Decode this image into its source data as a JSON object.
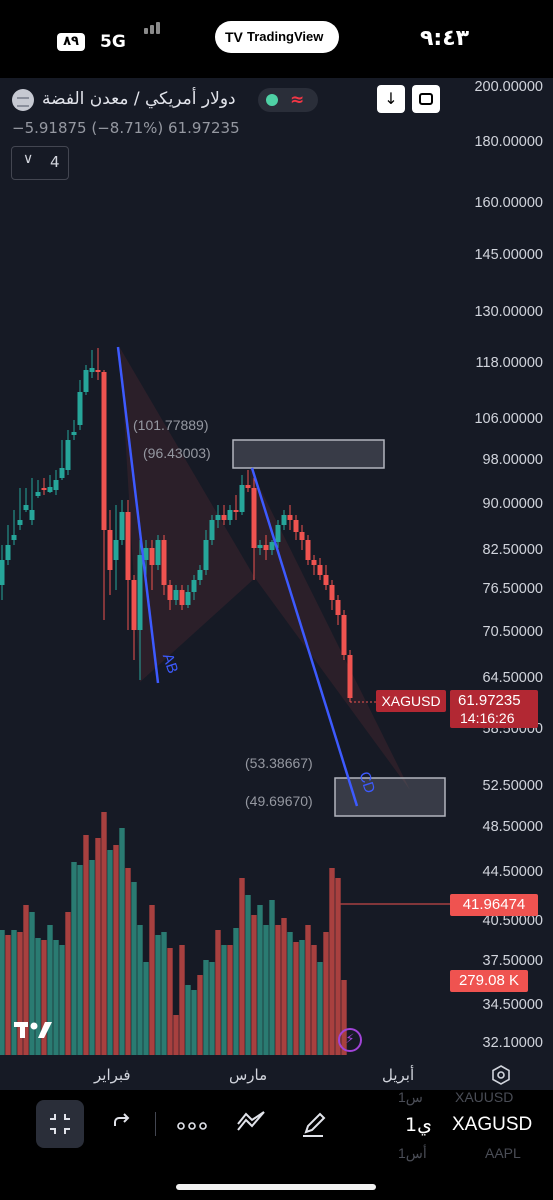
{
  "status_bar": {
    "badge": "٨٩",
    "network": "5G",
    "pill_logo": "TV",
    "pill_text": "TradingView",
    "time": "٩:٤٣"
  },
  "symbol": {
    "name": "دولار أمريكي / معدن الفضة",
    "change_line": "−5.91875 (−8.71%)  61.97235",
    "indicator_count": "4",
    "market_wave": "≈"
  },
  "price_axis": [
    "200.00000",
    "180.00000",
    "160.00000",
    "145.00000",
    "130.00000",
    "118.00000",
    "106.00000",
    "98.00000",
    "90.00000",
    "82.50000",
    "76.50000",
    "70.50000",
    "64.50000",
    "58.50000",
    "52.50000",
    "48.50000",
    "44.50000",
    "40.50000",
    "37.50000",
    "34.50000",
    "32.10000"
  ],
  "tags": {
    "symbol": "XAGUSD",
    "price": "61.97235",
    "countdown": "14:16:26",
    "volume_level": "41.96474",
    "volume": "279.08 K"
  },
  "annotations": {
    "a1": "(101.77889)",
    "a2": "(96.43003)",
    "a3": "(53.38667)",
    "a4": "(49.69670)",
    "ab": "AB",
    "cd": "CD"
  },
  "time_axis": [
    "فبراير",
    "مارس",
    "أبريل"
  ],
  "toolbar": {
    "symbol": "XAGUSD",
    "interval": "1ي",
    "ghost1": "XAUUSD",
    "ghost2": "AAPL",
    "ghost3": "1س",
    "ghost4": "1أس"
  },
  "colors": {
    "up": "#26a69a",
    "down": "#ef5350",
    "pattern": "#3d5afe",
    "bg": "#161a25"
  },
  "icons": [
    "download-icon",
    "screenshot-icon",
    "collapse-icon",
    "redo-icon",
    "more-icon",
    "drawing-tools-icon",
    "pen-icon",
    "settings-icon",
    "bolt-icon"
  ]
}
